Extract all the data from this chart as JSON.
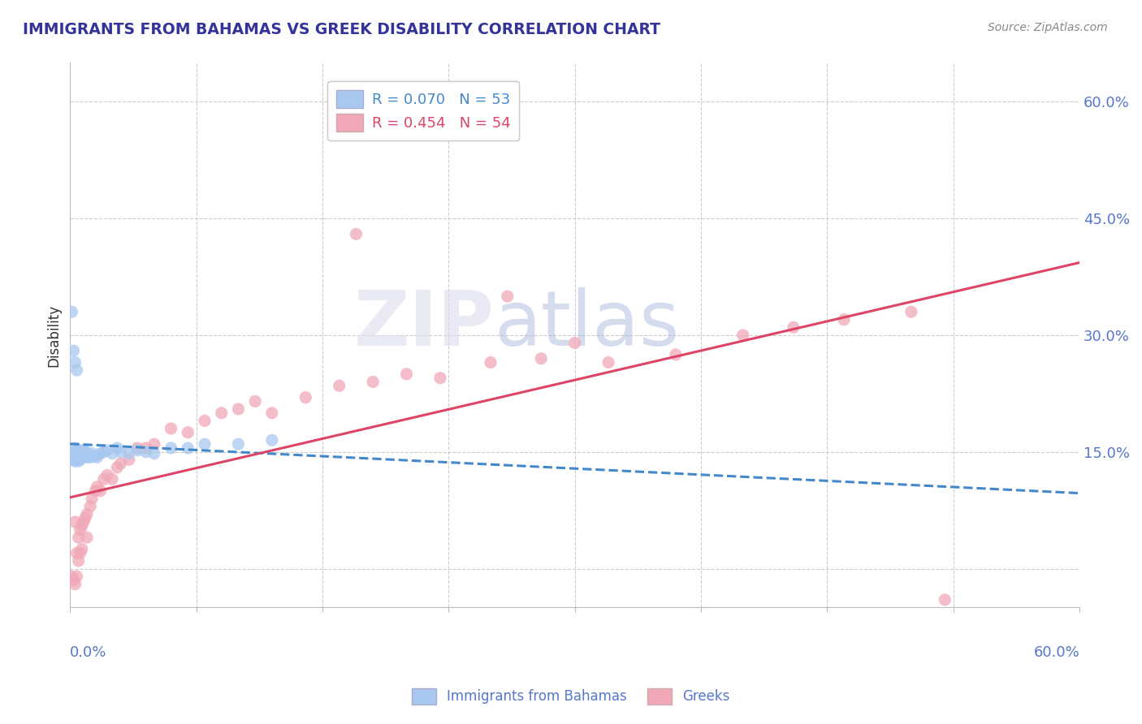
{
  "title": "IMMIGRANTS FROM BAHAMAS VS GREEK DISABILITY CORRELATION CHART",
  "source": "Source: ZipAtlas.com",
  "watermark": "ZIPatlas",
  "ylabel": "Disability",
  "xlim": [
    0.0,
    0.6
  ],
  "ylim": [
    -0.05,
    0.65
  ],
  "y_ticks": [
    0.0,
    0.15,
    0.3,
    0.45,
    0.6
  ],
  "y_tick_labels": [
    "",
    "15.0%",
    "30.0%",
    "45.0%",
    "60.0%"
  ],
  "x_grid_lines": [
    0.075,
    0.15,
    0.225,
    0.3,
    0.375,
    0.45,
    0.525
  ],
  "legend_blue_r": "R = 0.070",
  "legend_blue_n": "N = 53",
  "legend_pink_r": "R = 0.454",
  "legend_pink_n": "N = 54",
  "legend_label_blue": "Immigrants from Bahamas",
  "legend_label_pink": "Greeks",
  "blue_color": "#A8C8F0",
  "pink_color": "#F0A8B8",
  "blue_line_color": "#4488CC",
  "pink_line_color": "#DD4466",
  "title_color": "#333399",
  "axis_label_color": "#5577CC",
  "tick_color": "#5577CC",
  "background_color": "#FFFFFF",
  "blue_scatter_x": [
    0.001,
    0.002,
    0.002,
    0.002,
    0.003,
    0.003,
    0.003,
    0.003,
    0.004,
    0.004,
    0.004,
    0.004,
    0.004,
    0.005,
    0.005,
    0.005,
    0.005,
    0.006,
    0.006,
    0.006,
    0.006,
    0.007,
    0.007,
    0.007,
    0.008,
    0.008,
    0.009,
    0.009,
    0.01,
    0.01,
    0.011,
    0.012,
    0.013,
    0.015,
    0.016,
    0.018,
    0.02,
    0.022,
    0.025,
    0.028,
    0.03,
    0.035,
    0.04,
    0.045,
    0.05,
    0.06,
    0.07,
    0.08,
    0.1,
    0.12,
    0.002,
    0.003,
    0.004
  ],
  "blue_scatter_y": [
    0.33,
    0.15,
    0.15,
    0.14,
    0.155,
    0.148,
    0.143,
    0.138,
    0.15,
    0.148,
    0.145,
    0.143,
    0.14,
    0.15,
    0.148,
    0.145,
    0.138,
    0.152,
    0.148,
    0.145,
    0.14,
    0.15,
    0.148,
    0.143,
    0.152,
    0.148,
    0.15,
    0.145,
    0.148,
    0.143,
    0.145,
    0.143,
    0.148,
    0.145,
    0.143,
    0.148,
    0.15,
    0.152,
    0.148,
    0.155,
    0.15,
    0.148,
    0.152,
    0.15,
    0.148,
    0.155,
    0.155,
    0.16,
    0.16,
    0.165,
    0.28,
    0.265,
    0.255
  ],
  "pink_scatter_x": [
    0.001,
    0.002,
    0.003,
    0.003,
    0.004,
    0.004,
    0.005,
    0.005,
    0.006,
    0.006,
    0.007,
    0.007,
    0.008,
    0.009,
    0.01,
    0.01,
    0.012,
    0.013,
    0.015,
    0.016,
    0.018,
    0.02,
    0.022,
    0.025,
    0.028,
    0.03,
    0.035,
    0.04,
    0.045,
    0.05,
    0.06,
    0.07,
    0.08,
    0.09,
    0.1,
    0.11,
    0.12,
    0.14,
    0.16,
    0.18,
    0.2,
    0.22,
    0.25,
    0.28,
    0.32,
    0.36,
    0.4,
    0.43,
    0.46,
    0.5,
    0.17,
    0.26,
    0.3,
    0.52
  ],
  "pink_scatter_y": [
    -0.01,
    -0.015,
    0.06,
    -0.02,
    0.02,
    -0.01,
    0.04,
    0.01,
    0.05,
    0.02,
    0.055,
    0.025,
    0.06,
    0.065,
    0.07,
    0.04,
    0.08,
    0.09,
    0.1,
    0.105,
    0.1,
    0.115,
    0.12,
    0.115,
    0.13,
    0.135,
    0.14,
    0.155,
    0.155,
    0.16,
    0.18,
    0.175,
    0.19,
    0.2,
    0.205,
    0.215,
    0.2,
    0.22,
    0.235,
    0.24,
    0.25,
    0.245,
    0.265,
    0.27,
    0.265,
    0.275,
    0.3,
    0.31,
    0.32,
    0.33,
    0.43,
    0.35,
    0.29,
    -0.04
  ]
}
